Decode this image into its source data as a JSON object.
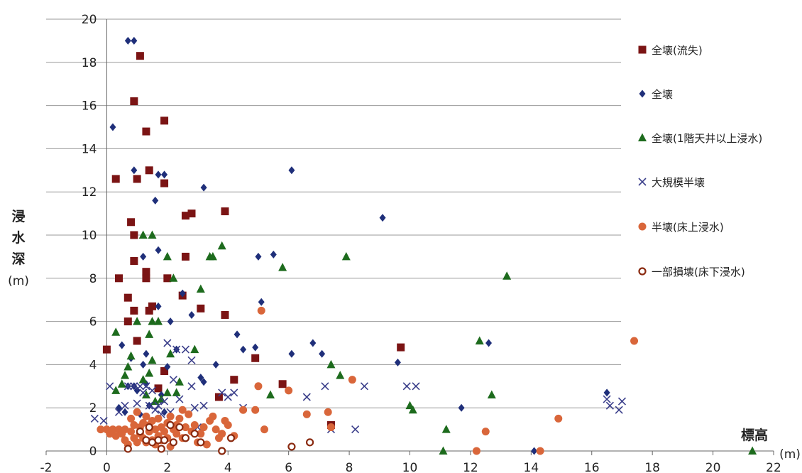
{
  "chart_data": {
    "type": "scatter",
    "title": "",
    "xlabel": "標高",
    "xunit": "(m)",
    "ylabel_chars": [
      "浸",
      "水",
      "深"
    ],
    "yunit": "(m)",
    "xlim": [
      -2,
      22
    ],
    "ylim": [
      0,
      20
    ],
    "xticks": [
      -2,
      0,
      2,
      4,
      6,
      8,
      10,
      12,
      14,
      16,
      18,
      20,
      22
    ],
    "yticks": [
      0,
      2,
      4,
      6,
      8,
      10,
      12,
      14,
      16,
      18,
      20
    ],
    "grid": "horizontal",
    "legend_position": "right",
    "series": [
      {
        "name": "全壊(流失)",
        "marker": "square",
        "color": "#7b1414",
        "points": [
          [
            0,
            4.7
          ],
          [
            0.3,
            12.6
          ],
          [
            0.4,
            8
          ],
          [
            0.7,
            7.1
          ],
          [
            0.7,
            6
          ],
          [
            0.8,
            10.6
          ],
          [
            0.9,
            10
          ],
          [
            0.9,
            8.8
          ],
          [
            0.9,
            6.5
          ],
          [
            0.9,
            16.2
          ],
          [
            1.0,
            12.6
          ],
          [
            1.0,
            5.1
          ],
          [
            1.1,
            18.3
          ],
          [
            1.3,
            14.8
          ],
          [
            1.3,
            8.3
          ],
          [
            1.3,
            8
          ],
          [
            1.4,
            13
          ],
          [
            1.4,
            6.5
          ],
          [
            1.5,
            6.7
          ],
          [
            1.7,
            2.9
          ],
          [
            1.9,
            12.4
          ],
          [
            1.9,
            15.3
          ],
          [
            1.9,
            3.7
          ],
          [
            2.0,
            8
          ],
          [
            2.5,
            7.2
          ],
          [
            2.6,
            10.9
          ],
          [
            2.6,
            9
          ],
          [
            2.8,
            11
          ],
          [
            3.1,
            6.6
          ],
          [
            3.7,
            2.5
          ],
          [
            3.9,
            11.1
          ],
          [
            3.9,
            6.3
          ],
          [
            4.2,
            3.3
          ],
          [
            4.9,
            4.3
          ],
          [
            5.8,
            3.1
          ],
          [
            7.4,
            1.2
          ],
          [
            9.7,
            4.8
          ]
        ]
      },
      {
        "name": "全壊",
        "marker": "diamond",
        "color": "#1f2f7a",
        "points": [
          [
            0.2,
            15
          ],
          [
            0.4,
            2
          ],
          [
            0.5,
            4.9
          ],
          [
            0.6,
            1.8
          ],
          [
            0.7,
            19
          ],
          [
            0.7,
            3
          ],
          [
            0.8,
            4.3
          ],
          [
            0.9,
            19
          ],
          [
            0.9,
            13
          ],
          [
            0.9,
            3
          ],
          [
            1.0,
            2.8
          ],
          [
            1.1,
            1.7
          ],
          [
            1.2,
            9
          ],
          [
            1.2,
            4
          ],
          [
            1.3,
            3.1
          ],
          [
            1.3,
            4.5
          ],
          [
            1.4,
            2.1
          ],
          [
            1.6,
            11.6
          ],
          [
            1.7,
            12.8
          ],
          [
            1.7,
            9.3
          ],
          [
            1.7,
            6.7
          ],
          [
            1.8,
            2.6
          ],
          [
            1.9,
            12.8
          ],
          [
            1.9,
            1.8
          ],
          [
            2.0,
            3.9
          ],
          [
            2.1,
            6
          ],
          [
            2.3,
            4.7
          ],
          [
            2.5,
            7.3
          ],
          [
            2.8,
            6.3
          ],
          [
            3.1,
            3.4
          ],
          [
            3.2,
            12.2
          ],
          [
            3.2,
            3.2
          ],
          [
            3.6,
            4
          ],
          [
            4.3,
            5.4
          ],
          [
            4.5,
            4.7
          ],
          [
            4.9,
            4.8
          ],
          [
            5.0,
            9
          ],
          [
            5.1,
            6.9
          ],
          [
            5.5,
            9.1
          ],
          [
            6.1,
            13
          ],
          [
            6.1,
            4.5
          ],
          [
            6.8,
            5
          ],
          [
            7.1,
            4.5
          ],
          [
            9.1,
            10.8
          ],
          [
            9.6,
            4.1
          ],
          [
            11.7,
            2
          ],
          [
            12.6,
            5
          ],
          [
            14.1,
            0
          ],
          [
            16.5,
            2.7
          ]
        ]
      },
      {
        "name": "全壊(1階天井以上浸水)",
        "marker": "triangle",
        "color": "#1d6b1d",
        "points": [
          [
            0.3,
            5.5
          ],
          [
            0.3,
            2.8
          ],
          [
            0.5,
            3.1
          ],
          [
            0.6,
            3.5
          ],
          [
            0.7,
            3.9
          ],
          [
            0.8,
            4.4
          ],
          [
            1.0,
            6
          ],
          [
            1.2,
            10
          ],
          [
            1.2,
            3.3
          ],
          [
            1.3,
            2.6
          ],
          [
            1.4,
            5.4
          ],
          [
            1.4,
            3.6
          ],
          [
            1.5,
            10
          ],
          [
            1.5,
            6
          ],
          [
            1.5,
            4.2
          ],
          [
            1.6,
            2.3
          ],
          [
            1.7,
            6
          ],
          [
            1.8,
            2.4
          ],
          [
            2.0,
            9
          ],
          [
            2.0,
            2.7
          ],
          [
            2.1,
            4.5
          ],
          [
            2.2,
            8
          ],
          [
            2.3,
            2.7
          ],
          [
            2.4,
            3.2
          ],
          [
            2.9,
            4.7
          ],
          [
            3.1,
            7.5
          ],
          [
            3.4,
            9
          ],
          [
            3.5,
            9
          ],
          [
            3.8,
            9.5
          ],
          [
            5.4,
            2.6
          ],
          [
            5.8,
            8.5
          ],
          [
            7.4,
            4
          ],
          [
            7.7,
            3.5
          ],
          [
            7.9,
            9
          ],
          [
            10.0,
            2.1
          ],
          [
            10.1,
            1.9
          ],
          [
            11.1,
            0
          ],
          [
            11.2,
            1
          ],
          [
            12.3,
            5.1
          ],
          [
            12.7,
            2.6
          ],
          [
            13.2,
            8.1
          ],
          [
            21.3,
            0
          ]
        ]
      },
      {
        "name": "大規模半壊",
        "marker": "x",
        "color": "#3a3e8a",
        "points": [
          [
            -0.4,
            1.5
          ],
          [
            -0.1,
            1.4
          ],
          [
            0.1,
            3
          ],
          [
            0.4,
            1.8
          ],
          [
            0.6,
            2.1
          ],
          [
            0.7,
            3
          ],
          [
            0.9,
            3
          ],
          [
            1.0,
            2.2
          ],
          [
            1.1,
            3
          ],
          [
            1.2,
            2.7
          ],
          [
            1.3,
            3
          ],
          [
            1.4,
            2.1
          ],
          [
            1.5,
            2.8
          ],
          [
            1.6,
            1.9
          ],
          [
            1.7,
            2.1
          ],
          [
            1.8,
            1.7
          ],
          [
            1.9,
            2.3
          ],
          [
            2.0,
            5
          ],
          [
            2.1,
            1.8
          ],
          [
            2.2,
            3.3
          ],
          [
            2.3,
            4.7
          ],
          [
            2.4,
            2.4
          ],
          [
            2.6,
            4.7
          ],
          [
            2.8,
            4.2
          ],
          [
            2.8,
            3
          ],
          [
            2.9,
            2
          ],
          [
            3.0,
            1.1
          ],
          [
            3.2,
            2.1
          ],
          [
            3.8,
            2.7
          ],
          [
            4.0,
            2.5
          ],
          [
            4.2,
            2.7
          ],
          [
            4.5,
            2
          ],
          [
            6.6,
            2.5
          ],
          [
            7.2,
            3
          ],
          [
            7.4,
            1
          ],
          [
            8.2,
            1
          ],
          [
            8.5,
            3
          ],
          [
            9.9,
            3
          ],
          [
            10.2,
            3
          ],
          [
            16.5,
            2.4
          ],
          [
            16.6,
            2.1
          ],
          [
            16.9,
            1.9
          ],
          [
            17.0,
            2.3
          ]
        ]
      },
      {
        "name": "半壊(床上浸水)",
        "marker": "circle",
        "color": "#d9663a",
        "points": [
          [
            -0.2,
            1
          ],
          [
            0,
            1
          ],
          [
            0.1,
            0.8
          ],
          [
            0.2,
            1
          ],
          [
            0.3,
            0.7
          ],
          [
            0.4,
            1
          ],
          [
            0.5,
            0.8
          ],
          [
            0.6,
            1
          ],
          [
            0.6,
            0.5
          ],
          [
            0.7,
            0.3
          ],
          [
            0.8,
            0.9
          ],
          [
            0.8,
            1.5
          ],
          [
            0.9,
            0.6
          ],
          [
            0.9,
            1.2
          ],
          [
            1.0,
            0.4
          ],
          [
            1.0,
            1.8
          ],
          [
            1.1,
            0.8
          ],
          [
            1.1,
            1.1
          ],
          [
            1.2,
            0.6
          ],
          [
            1.2,
            1.3
          ],
          [
            1.3,
            0.4
          ],
          [
            1.3,
            1.6
          ],
          [
            1.4,
            0.9
          ],
          [
            1.4,
            1.2
          ],
          [
            1.5,
            0.5
          ],
          [
            1.5,
            1.4
          ],
          [
            1.6,
            1
          ],
          [
            1.6,
            0.3
          ],
          [
            1.7,
            1.5
          ],
          [
            1.7,
            0.7
          ],
          [
            1.8,
            1.1
          ],
          [
            1.8,
            0.5
          ],
          [
            1.9,
            0.9
          ],
          [
            2.0,
            1.3
          ],
          [
            2.0,
            0.6
          ],
          [
            2.1,
            1.6
          ],
          [
            2.1,
            0.2
          ],
          [
            2.2,
            1
          ],
          [
            2.3,
            0.8
          ],
          [
            2.3,
            1.2
          ],
          [
            2.4,
            1.5
          ],
          [
            2.5,
            0.6
          ],
          [
            2.5,
            1.9
          ],
          [
            2.6,
            1.1
          ],
          [
            2.7,
            1.7
          ],
          [
            2.8,
            0.9
          ],
          [
            2.9,
            1.2
          ],
          [
            3.0,
            0.4
          ],
          [
            3.1,
            0.8
          ],
          [
            3.2,
            1.1
          ],
          [
            3.3,
            0.3
          ],
          [
            3.4,
            1.4
          ],
          [
            3.5,
            1.6
          ],
          [
            3.6,
            1
          ],
          [
            3.7,
            0.6
          ],
          [
            3.8,
            0.8
          ],
          [
            3.9,
            1.4
          ],
          [
            4.0,
            1.2
          ],
          [
            4.2,
            0.7
          ],
          [
            4.5,
            1.9
          ],
          [
            4.9,
            1.9
          ],
          [
            5.0,
            3
          ],
          [
            5.1,
            6.5
          ],
          [
            5.2,
            1
          ],
          [
            6.0,
            2.8
          ],
          [
            6.6,
            1.7
          ],
          [
            7.3,
            1.8
          ],
          [
            7.4,
            1.1
          ],
          [
            8.1,
            3.3
          ],
          [
            12.2,
            0
          ],
          [
            12.5,
            0.9
          ],
          [
            14.3,
            0
          ],
          [
            14.9,
            1.5
          ],
          [
            17.4,
            5.1
          ]
        ]
      },
      {
        "name": "一部損壊(床下浸水)",
        "marker": "ring",
        "color": "#8a2a10",
        "points": [
          [
            0.7,
            0.1
          ],
          [
            1.1,
            0.9
          ],
          [
            1.3,
            0.5
          ],
          [
            1.4,
            1.1
          ],
          [
            1.5,
            0.4
          ],
          [
            1.7,
            0.5
          ],
          [
            1.8,
            0.1
          ],
          [
            1.9,
            0.5
          ],
          [
            2.1,
            1.2
          ],
          [
            2.2,
            0.4
          ],
          [
            2.4,
            1.1
          ],
          [
            2.6,
            0.6
          ],
          [
            2.9,
            0.8
          ],
          [
            3.1,
            0.4
          ],
          [
            3.8,
            0
          ],
          [
            4.1,
            0.6
          ],
          [
            6.1,
            0.2
          ],
          [
            6.7,
            0.4
          ]
        ]
      }
    ]
  }
}
